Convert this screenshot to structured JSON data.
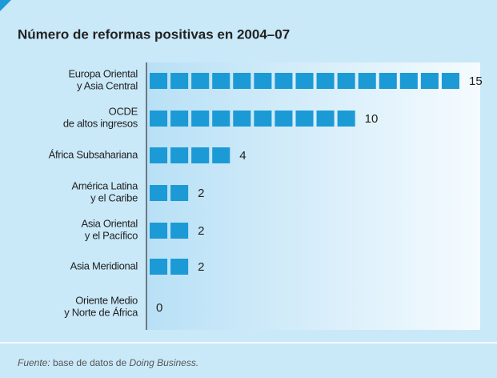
{
  "chart_data": {
    "type": "pictobar",
    "title": "Número de reformas positivas  en 2004–07",
    "categories": [
      "Europa Oriental\ny Asia Central",
      "OCDE\nde altos ingresos",
      "África Subsahariana",
      "América Latina\ny el Caribe",
      "Asia Oriental\ny el Pacífico",
      "Asia Meridional",
      "Oriente Medio\ny Norte de África"
    ],
    "values": [
      15,
      10,
      4,
      2,
      2,
      2,
      0
    ],
    "color": "#1b9ad6",
    "xlim": [
      0,
      15
    ],
    "source": {
      "label": "Fuente:",
      "text": "base de datos de",
      "name": "Doing Business."
    }
  }
}
